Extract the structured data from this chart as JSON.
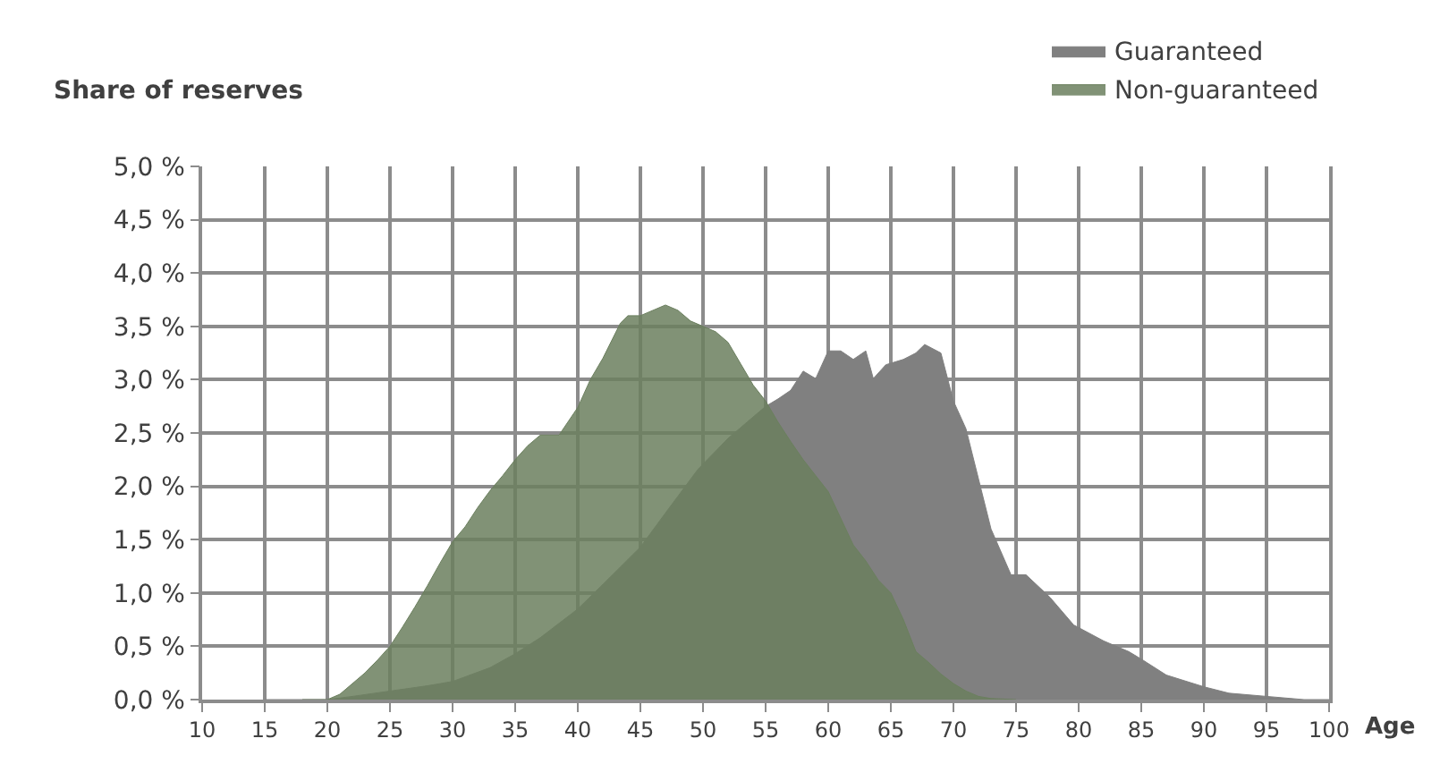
{
  "chart_data": {
    "type": "area",
    "ylabel": "Share of reserves",
    "xlabel": "Age",
    "xlim": [
      10,
      100
    ],
    "xticks": [
      10,
      15,
      20,
      25,
      30,
      35,
      40,
      45,
      50,
      55,
      60,
      65,
      70,
      75,
      80,
      85,
      90,
      95,
      100
    ],
    "ylim": [
      0,
      5
    ],
    "yticks": [
      {
        "value": 0,
        "label": "0,0 %"
      },
      {
        "value": 0.5,
        "label": "0,5 %"
      },
      {
        "value": 1,
        "label": "1,0 %"
      },
      {
        "value": 1.5,
        "label": "1,5 %"
      },
      {
        "value": 2,
        "label": "2,0 %"
      },
      {
        "value": 2.5,
        "label": "2,5 %"
      },
      {
        "value": 3,
        "label": "3,0 %"
      },
      {
        "value": 3.5,
        "label": "3,5 %"
      },
      {
        "value": 4,
        "label": "4,0 %"
      },
      {
        "value": 4.5,
        "label": "4,5 %"
      },
      {
        "value": 5,
        "label": "5,0 %"
      }
    ],
    "grid": true,
    "legend": "top right",
    "series": [
      {
        "name": "Guaranteed",
        "color": "#808080",
        "x": [
          15,
          20,
          22,
          25,
          28,
          30,
          33,
          35,
          37,
          40,
          42,
          45,
          47,
          49.6,
          52,
          54,
          55,
          56,
          57,
          58,
          59,
          60,
          61,
          62,
          63,
          63.6,
          64.6,
          66,
          67,
          67.7,
          69,
          70,
          71,
          72,
          73,
          74.6,
          75.8,
          77.7,
          79.6,
          82,
          84,
          85,
          87,
          90,
          92,
          95,
          98,
          100
        ],
        "values": [
          0,
          0,
          0.03,
          0.08,
          0.13,
          0.17,
          0.3,
          0.43,
          0.58,
          0.85,
          1.08,
          1.43,
          1.75,
          2.16,
          2.45,
          2.65,
          2.75,
          2.82,
          2.9,
          3.08,
          3.01,
          3.27,
          3.27,
          3.19,
          3.27,
          3.01,
          3.14,
          3.19,
          3.25,
          3.33,
          3.25,
          2.8,
          2.54,
          2.07,
          1.6,
          1.17,
          1.17,
          0.96,
          0.7,
          0.55,
          0.45,
          0.38,
          0.23,
          0.12,
          0.06,
          0.03,
          0,
          0
        ]
      },
      {
        "name": "Non-guaranteed",
        "color": "#6b7f5e",
        "x": [
          18,
          20,
          21,
          22,
          23,
          24,
          25,
          26,
          27,
          28,
          29,
          30,
          31,
          32,
          33,
          34,
          35,
          36,
          37,
          38.5,
          40,
          41,
          42,
          43.4,
          44,
          45,
          46,
          47,
          48,
          49,
          50,
          51,
          52,
          53,
          54,
          55,
          56,
          57,
          58,
          59,
          60,
          61,
          62,
          63,
          64,
          65,
          66,
          67,
          68,
          69,
          70,
          71,
          72,
          73,
          75
        ],
        "values": [
          0,
          0,
          0.05,
          0.15,
          0.25,
          0.37,
          0.5,
          0.68,
          0.87,
          1.07,
          1.28,
          1.48,
          1.62,
          1.8,
          1.96,
          2.1,
          2.25,
          2.38,
          2.48,
          2.48,
          2.74,
          3.0,
          3.2,
          3.53,
          3.6,
          3.6,
          3.65,
          3.7,
          3.65,
          3.55,
          3.5,
          3.45,
          3.35,
          3.15,
          2.95,
          2.8,
          2.6,
          2.42,
          2.25,
          2.1,
          1.95,
          1.7,
          1.45,
          1.3,
          1.12,
          1.0,
          0.75,
          0.45,
          0.35,
          0.24,
          0.15,
          0.08,
          0.03,
          0.01,
          0
        ]
      }
    ]
  }
}
